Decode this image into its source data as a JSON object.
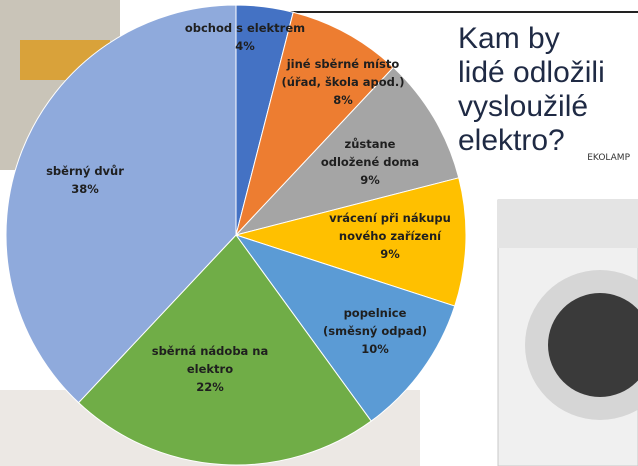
{
  "chart_data": {
    "type": "pie",
    "title": [
      "Kam by",
      "lidé odložili",
      "vysloužilé",
      "elektro?"
    ],
    "source": "EKOLAMP",
    "categories": [
      [
        "obchod s elektrem"
      ],
      [
        "jiné sběrné místo",
        "(úřad, škola apod.)"
      ],
      [
        "zůstane",
        "odložené doma"
      ],
      [
        "vrácení při nákupu",
        "nového zařízení"
      ],
      [
        "popelnice",
        "(směsný odpad)"
      ],
      [
        "sběrná nádoba na",
        "elektro"
      ],
      [
        "sběrný dvůr"
      ]
    ],
    "values": [
      4,
      8,
      9,
      9,
      10,
      22,
      38
    ],
    "value_labels": [
      "4%",
      "8%",
      "9%",
      "9%",
      "10%",
      "22%",
      "38%"
    ],
    "colors": [
      "#4472c4",
      "#ed7d31",
      "#a5a5a5",
      "#ffc000",
      "#5b9bd5",
      "#70ad47",
      "#8faadc"
    ]
  }
}
